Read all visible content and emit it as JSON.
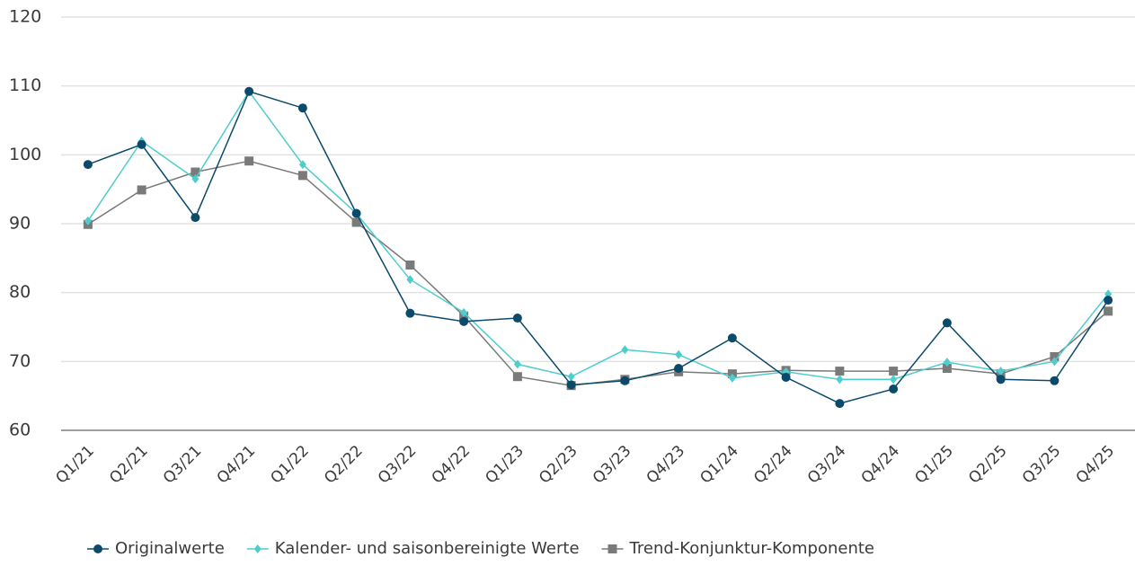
{
  "chart_data": {
    "type": "line",
    "categories": [
      "Q1/21",
      "Q2/21",
      "Q3/21",
      "Q4/21",
      "Q1/22",
      "Q2/22",
      "Q3/22",
      "Q4/22",
      "Q1/23",
      "Q2/23",
      "Q3/23",
      "Q4/23",
      "Q1/24",
      "Q2/24",
      "Q3/24",
      "Q4/24",
      "Q1/25",
      "Q2/25",
      "Q3/25",
      "Q4/25"
    ],
    "series": [
      {
        "name": "Originalwerte",
        "color": "#0b4a6b",
        "marker": "circle",
        "values": [
          98.6,
          101.5,
          90.9,
          109.2,
          106.8,
          91.5,
          77.0,
          75.8,
          76.3,
          66.6,
          67.2,
          69.0,
          73.4,
          67.7,
          63.9,
          66.0,
          75.6,
          67.4,
          67.2,
          78.9
        ]
      },
      {
        "name": "Kalender- und saisonbereinigte Werte",
        "color": "#4fcdcd",
        "marker": "diamond",
        "values": [
          90.4,
          102.0,
          96.5,
          109.2,
          98.6,
          91.5,
          81.9,
          77.1,
          69.6,
          67.8,
          71.7,
          71.0,
          67.6,
          68.5,
          67.4,
          67.4,
          69.9,
          68.6,
          70.0,
          79.8
        ]
      },
      {
        "name": "Trend-Konjunktur-Komponente",
        "color": "#7a7a7a",
        "marker": "square",
        "values": [
          89.9,
          94.9,
          97.5,
          99.1,
          97.0,
          90.2,
          84.0,
          76.6,
          67.8,
          66.5,
          67.4,
          68.5,
          68.2,
          68.7,
          68.6,
          68.6,
          69.0,
          68.2,
          70.7,
          77.3
        ]
      }
    ],
    "ylim": [
      60,
      120
    ],
    "yticks": [
      60,
      70,
      80,
      90,
      100,
      110,
      120
    ],
    "grid": true,
    "legend": "bottom"
  }
}
